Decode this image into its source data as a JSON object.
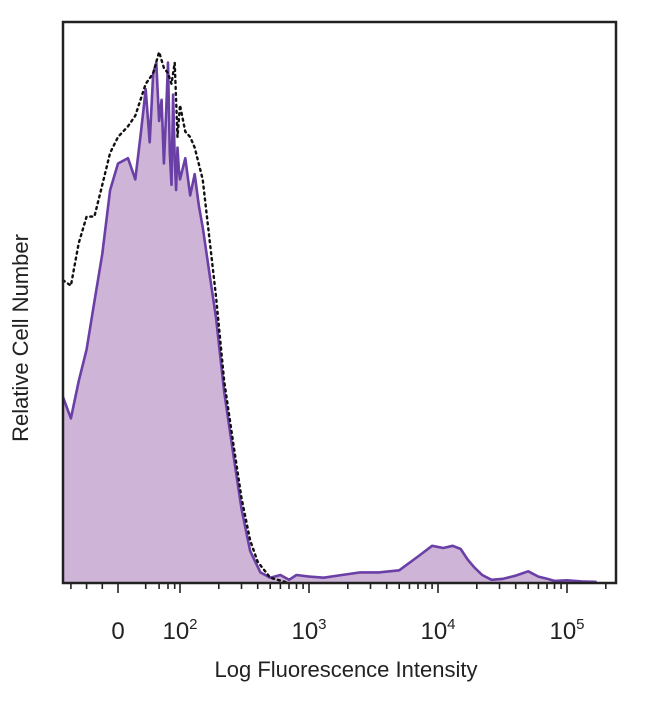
{
  "chart_data": {
    "type": "area",
    "title": "",
    "xlabel": "Log Fluorescence Intensity",
    "ylabel": "Relative Cell Number",
    "x_scale": "biexponential",
    "xlim": [
      -70,
      200000
    ],
    "ylim": [
      0,
      100
    ],
    "grid": false,
    "legend": "none",
    "x_ticks": [
      {
        "value": 0,
        "base": "0",
        "exp": ""
      },
      {
        "value": 100,
        "base": "10",
        "exp": "2"
      },
      {
        "value": 1000,
        "base": "10",
        "exp": "3"
      },
      {
        "value": 10000,
        "base": "10",
        "exp": "4"
      },
      {
        "value": 100000,
        "base": "10",
        "exp": "5"
      }
    ],
    "colors": {
      "fill": "#ceb4d6",
      "stained_line": "#6a3fa6",
      "isotype_line": "#111111",
      "frame": "#222222"
    },
    "series": [
      {
        "style": "filled purple",
        "x": [
          -70,
          -60,
          -50,
          -40,
          -30,
          -20,
          -10,
          0,
          5,
          10,
          15,
          20,
          25,
          30,
          35,
          40,
          45,
          50,
          55,
          60,
          65,
          70,
          75,
          80,
          85,
          90,
          95,
          100,
          110,
          120,
          130,
          140,
          150,
          170,
          190,
          220,
          260,
          300,
          350,
          420,
          500,
          600,
          700,
          800,
          1000,
          1300,
          1800,
          2500,
          3500,
          5000,
          7000,
          9000,
          11000,
          13000,
          15000,
          17000,
          19000,
          22000,
          26000,
          32000,
          40000,
          50000,
          60000,
          70000,
          80000,
          100000,
          130000,
          170000
        ],
        "y": [
          35,
          31,
          38,
          44,
          53,
          62,
          74,
          79,
          80,
          76,
          85,
          93,
          83,
          96,
          98,
          87,
          91,
          79,
          88,
          98,
          81,
          75,
          92,
          80,
          74,
          82,
          78,
          76,
          80,
          73,
          77,
          71,
          67,
          58,
          50,
          36,
          24,
          14,
          6,
          2,
          1,
          1.5,
          0.6,
          1.5,
          1.2,
          1,
          1.5,
          2,
          2,
          2.4,
          5,
          7,
          6.6,
          7,
          6.4,
          4.4,
          3,
          1.5,
          0.6,
          0.8,
          1.4,
          2.2,
          1.2,
          0.8,
          0.4,
          0.5,
          0.3,
          0.2
        ]
      },
      {
        "style": "dotted black",
        "x": [
          -70,
          -60,
          -50,
          -40,
          -30,
          -20,
          -10,
          0,
          5,
          10,
          20,
          30,
          40,
          50,
          60,
          70,
          80,
          90,
          100,
          110,
          120,
          130,
          150,
          190,
          220,
          260,
          300,
          350,
          400,
          500,
          700
        ],
        "y": [
          57,
          56,
          64,
          69,
          69,
          75,
          81,
          84,
          86,
          88,
          94,
          96,
          100,
          97,
          96,
          94,
          98,
          84,
          90,
          85,
          84,
          82,
          76,
          54,
          38,
          26,
          16,
          8,
          4,
          1,
          0
        ]
      }
    ]
  }
}
